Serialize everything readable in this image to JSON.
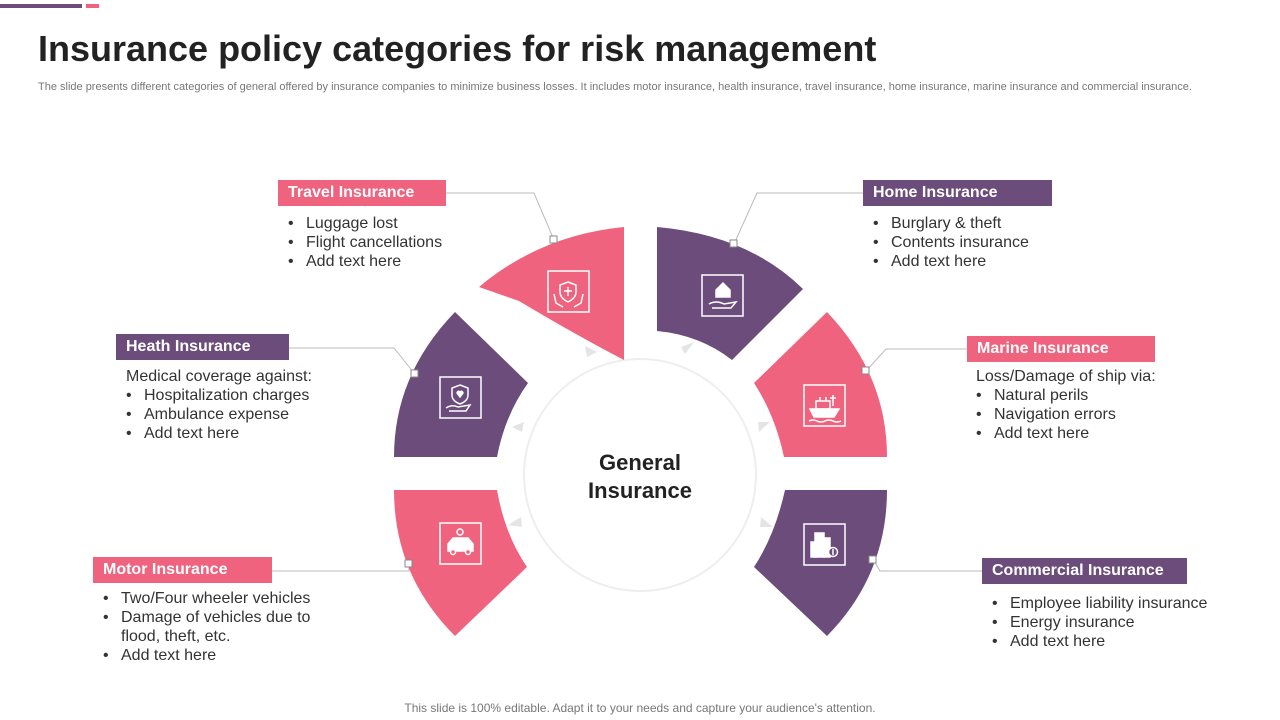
{
  "header": {
    "title": "Insurance policy categories for risk management",
    "subtitle": "The slide presents different categories of general offered by insurance companies to minimize business losses. It includes motor insurance, health insurance, travel insurance, home insurance, marine insurance and commercial insurance."
  },
  "center": {
    "line1": "General",
    "line2": "Insurance"
  },
  "colors": {
    "pink": "#f0637e",
    "purple": "#6b4c7a"
  },
  "categories": [
    {
      "title": "Travel Insurance",
      "color": "pink",
      "icon": "hands-shield-icon",
      "bullets": [
        "Luggage lost",
        "Flight cancellations",
        "Add text here"
      ]
    },
    {
      "title": "Home Insurance",
      "color": "purple",
      "icon": "house-hand-icon",
      "bullets": [
        "Burglary  & theft",
        "Contents insurance",
        "Add text here"
      ]
    },
    {
      "title": "Heath Insurance",
      "color": "purple",
      "icon": "health-shield-icon",
      "intro": "Medical coverage against:",
      "bullets": [
        "Hospitalization charges",
        "Ambulance expense",
        "Add text here"
      ]
    },
    {
      "title": "Marine Insurance",
      "color": "pink",
      "icon": "ship-icon",
      "intro": "Loss/Damage of ship via:",
      "bullets": [
        "Natural perils",
        "Navigation errors",
        "Add text here"
      ]
    },
    {
      "title": "Motor Insurance",
      "color": "pink",
      "icon": "car-shield-icon",
      "bullets": [
        "Two/Four wheeler vehicles",
        "Damage of vehicles due to",
        "flood, theft,  etc.",
        "Add text here"
      ]
    },
    {
      "title": "Commercial Insurance",
      "color": "purple",
      "icon": "building-dollar-icon",
      "bullets": [
        "Employee liability insurance",
        "Energy insurance",
        "Add text here"
      ]
    }
  ],
  "footer": "This slide is 100% editable. Adapt it to your needs and capture your audience's attention."
}
